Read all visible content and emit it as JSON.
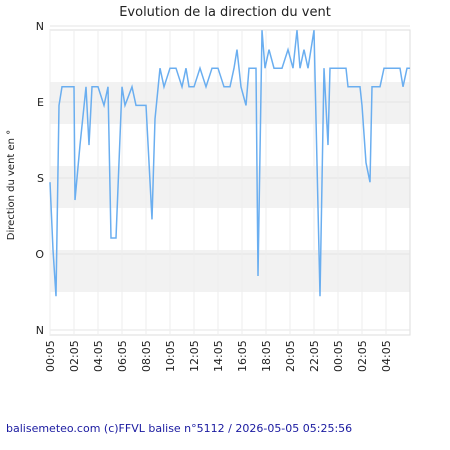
{
  "chart_data": {
    "type": "line",
    "title": "Evolution de la direction du vent",
    "y_label": "Direction du vent en °",
    "footer": "balisemeteo.com (c)FFVL balise n°5112 / 2026-05-05 05:25:56",
    "x": [
      0,
      0.25,
      0.5,
      0.75,
      1,
      2,
      2.08,
      2.5,
      3,
      3.25,
      3.5,
      4,
      4.5,
      4.83,
      5.08,
      5.5,
      6,
      6.25,
      6.83,
      7.17,
      8,
      8.5,
      8.75,
      9.17,
      9.5,
      10,
      10.5,
      11,
      11.33,
      11.58,
      12,
      12.5,
      13,
      13.5,
      14,
      14.5,
      15,
      15.33,
      15.58,
      15.92,
      16.33,
      16.58,
      17.17,
      17.33,
      17.67,
      17.92,
      18.25,
      18.67,
      19.33,
      19.83,
      20.25,
      20.58,
      20.83,
      21.17,
      21.5,
      22,
      22.5,
      22.83,
      23.17,
      23.33,
      24.67,
      24.83,
      25.83,
      26,
      26.33,
      26.67,
      26.83,
      27.5,
      27.83,
      29.17,
      29.42,
      29.75,
      30
    ],
    "series": [
      {
        "color": "#6aaef0",
        "values": [
          185,
          265,
          320,
          94,
          72,
          72,
          206,
          141,
          72,
          141,
          72,
          72,
          94,
          72,
          251,
          251,
          72,
          94,
          72,
          94,
          94,
          229,
          110,
          50,
          72,
          50,
          50,
          72,
          50,
          72,
          72,
          50,
          72,
          50,
          50,
          72,
          72,
          50,
          28,
          72,
          94,
          50,
          50,
          296,
          5,
          50,
          28,
          50,
          50,
          28,
          50,
          5,
          50,
          28,
          50,
          5,
          320,
          50,
          141,
          50,
          50,
          72,
          72,
          94,
          162,
          185,
          72,
          72,
          50,
          50,
          72,
          50,
          50
        ]
      }
    ],
    "xlim": [
      0,
      30
    ],
    "xticks": [
      {
        "value": 0,
        "label": "00:05"
      },
      {
        "value": 2,
        "label": "02:05"
      },
      {
        "value": 4,
        "label": "04:05"
      },
      {
        "value": 6,
        "label": "06:05"
      },
      {
        "value": 8,
        "label": "08:05"
      },
      {
        "value": 10,
        "label": "10:05"
      },
      {
        "value": 12,
        "label": "12:05"
      },
      {
        "value": 14,
        "label": "14:05"
      },
      {
        "value": 16,
        "label": "16:05"
      },
      {
        "value": 18,
        "label": "18:05"
      },
      {
        "value": 20,
        "label": "20:05"
      },
      {
        "value": 22,
        "label": "22:05"
      },
      {
        "value": 24,
        "label": "00:05"
      },
      {
        "value": 26,
        "label": "02:05"
      },
      {
        "value": 28,
        "label": "04:05"
      }
    ],
    "ylim": [
      0,
      360
    ],
    "y_inverted": true,
    "yticks": [
      {
        "value": 0,
        "label": "N"
      },
      {
        "value": 90,
        "label": "E"
      },
      {
        "value": 180,
        "label": "S"
      },
      {
        "value": 270,
        "label": "O"
      },
      {
        "value": 360,
        "label": "N"
      }
    ],
    "grid": true
  }
}
